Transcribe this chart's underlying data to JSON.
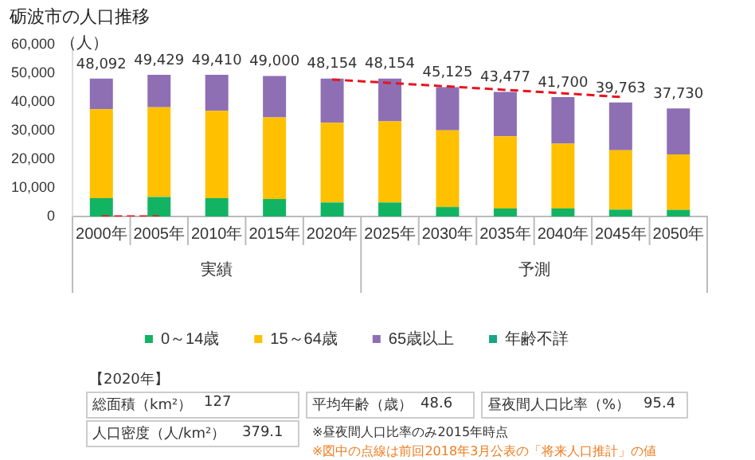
{
  "chart_data": {
    "type": "bar",
    "title": "砺波市の人口推移",
    "ylabel": "（人）",
    "stacked": true,
    "categories": [
      "2000年",
      "2005年",
      "2010年",
      "2015年",
      "2020年",
      "2025年",
      "2030年",
      "2035年",
      "2040年",
      "2045年",
      "2050年"
    ],
    "series": [
      {
        "name": "0～14歳",
        "color": "#12b463",
        "values": [
          6400,
          6800,
          6400,
          6100,
          4900,
          4900,
          3300,
          2800,
          2800,
          2400,
          2300
        ]
      },
      {
        "name": "15～64歳",
        "color": "#ffc000",
        "values": [
          31000,
          31300,
          30500,
          28500,
          27800,
          28300,
          26800,
          25200,
          22600,
          20700,
          19400
        ]
      },
      {
        "name": "65歳以上",
        "color": "#8e6fb3",
        "values": [
          10692,
          11329,
          12510,
          14400,
          15454,
          14954,
          15025,
          15477,
          16300,
          16663,
          16030
        ]
      },
      {
        "name": "年齢不詳",
        "color": "#1aa585",
        "values": [
          0,
          0,
          0,
          0,
          0,
          0,
          0,
          0,
          0,
          0,
          0
        ]
      },
      {
        "type": "line",
        "color": "#e8141e",
        "line_style": "dashed",
        "marker": "none",
        "values": [
          0,
          0,
          null,
          null,
          47800,
          46600,
          45400,
          44200,
          43000,
          41700,
          null
        ]
      }
    ],
    "totals": [
      "48,092",
      "49,429",
      "49,410",
      "49,000",
      "48,154",
      "48,154",
      "45,125",
      "43,477",
      "41,700",
      "39,763",
      "37,730"
    ],
    "ylim": [
      0,
      60000
    ],
    "yticks": [
      0,
      {
        "value": 10000,
        "label": "10,000"
      },
      {
        "value": 20000,
        "label": "20,000"
      },
      {
        "value": 30000,
        "label": "30,000"
      },
      {
        "value": 40000,
        "label": "40,000"
      },
      {
        "value": 50000,
        "label": "50,000"
      },
      {
        "value": 60000,
        "label": "60,000"
      }
    ],
    "grid": false,
    "legend": "bottom",
    "annotations": [
      "実績",
      "予測",
      "【2020年】",
      "総面積（km²）",
      "127",
      "平均年齢（歳）",
      "48.6",
      "昼夜間人口比率（%）",
      "95.4",
      "人口密度（人/km²）",
      "379.1",
      "※昼夜間人口比率のみ2015年時点",
      "※図中の点線は前回2018年3月公表の「将来人口推計」の値"
    ]
  }
}
